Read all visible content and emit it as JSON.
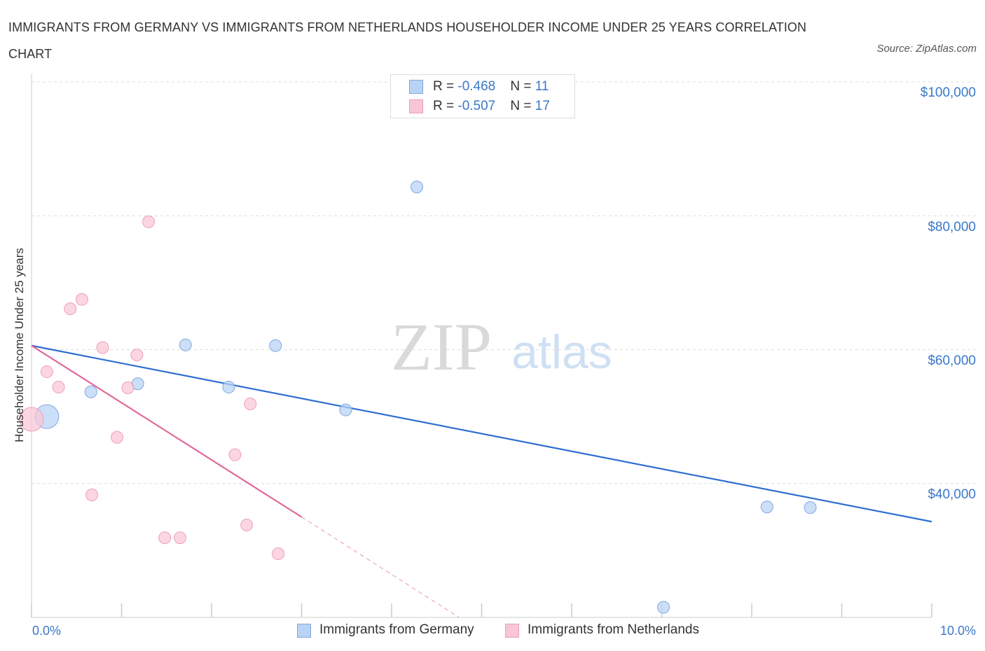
{
  "title": "IMMIGRANTS FROM GERMANY VS IMMIGRANTS FROM NETHERLANDS HOUSEHOLDER INCOME UNDER 25 YEARS CORRELATION CHART",
  "source": "Source: ZipAtlas.com",
  "watermark": {
    "zip": "ZIP",
    "atlas": "atlas"
  },
  "colors": {
    "germany_fill": "#b9d3f5",
    "germany_stroke": "#7fa8e0",
    "germany_line": "#2e6fd0",
    "netherlands_fill": "#f9c6d5",
    "netherlands_stroke": "#ee9fb7",
    "netherlands_line": "#e0689a",
    "axis_text": "#3a78c9"
  },
  "legend_top": [
    {
      "series": "germany",
      "r_label": "R = ",
      "r_value": "-0.468",
      "n_label": "N = ",
      "n_value": "11"
    },
    {
      "series": "netherlands",
      "r_label": "R = ",
      "r_value": "-0.507",
      "n_label": "N = ",
      "n_value": "17"
    }
  ],
  "chart_data": {
    "type": "scatter",
    "title": "IMMIGRANTS FROM GERMANY VS IMMIGRANTS FROM NETHERLANDS HOUSEHOLDER INCOME UNDER 25 YEARS CORRELATION CHART",
    "xlabel": "",
    "ylabel": "Householder Income Under 25 years",
    "xlim": [
      0,
      10
    ],
    "ylim": [
      20000,
      100000
    ],
    "x_tick_labels": [
      "0.0%",
      "10.0%"
    ],
    "y_ticks": [
      40000,
      60000,
      80000,
      100000
    ],
    "y_tick_labels": [
      "$40,000",
      "$60,000",
      "$80,000",
      "$100,000"
    ],
    "grid": true,
    "legend_position": "bottom-center",
    "series": [
      {
        "name": "Immigrants from Germany",
        "key": "germany",
        "r": -0.468,
        "n": 11,
        "points": [
          {
            "x": 0.17,
            "y": 50000,
            "big": true
          },
          {
            "x": 0.66,
            "y": 53700
          },
          {
            "x": 1.18,
            "y": 54900
          },
          {
            "x": 1.71,
            "y": 60700
          },
          {
            "x": 2.19,
            "y": 54400
          },
          {
            "x": 2.71,
            "y": 60600
          },
          {
            "x": 3.49,
            "y": 51000
          },
          {
            "x": 4.28,
            "y": 84300
          },
          {
            "x": 7.02,
            "y": 21500
          },
          {
            "x": 8.17,
            "y": 36500
          },
          {
            "x": 8.65,
            "y": 36400
          }
        ],
        "trend": {
          "x1": 0.0,
          "y1": 60600,
          "x2": 10.0,
          "y2": 34300
        }
      },
      {
        "name": "Immigrants from Netherlands",
        "key": "netherlands",
        "r": -0.507,
        "n": 17,
        "points": [
          {
            "x": 0.0,
            "y": 49600,
            "big": true
          },
          {
            "x": 0.17,
            "y": 56700
          },
          {
            "x": 0.3,
            "y": 54400
          },
          {
            "x": 0.43,
            "y": 66100
          },
          {
            "x": 0.56,
            "y": 67500
          },
          {
            "x": 0.67,
            "y": 38300
          },
          {
            "x": 0.79,
            "y": 60300
          },
          {
            "x": 0.95,
            "y": 46900
          },
          {
            "x": 1.07,
            "y": 54300
          },
          {
            "x": 1.17,
            "y": 59200
          },
          {
            "x": 1.3,
            "y": 79100
          },
          {
            "x": 1.48,
            "y": 31900
          },
          {
            "x": 1.65,
            "y": 31900
          },
          {
            "x": 2.26,
            "y": 44300
          },
          {
            "x": 2.39,
            "y": 33800
          },
          {
            "x": 2.43,
            "y": 51900
          },
          {
            "x": 2.74,
            "y": 29500
          }
        ],
        "trend": {
          "x1": 0.0,
          "y1": 60600,
          "x2": 3.0,
          "y2": 35000,
          "x_dash_end": 4.75,
          "y_dash_end": 20000
        }
      }
    ]
  }
}
